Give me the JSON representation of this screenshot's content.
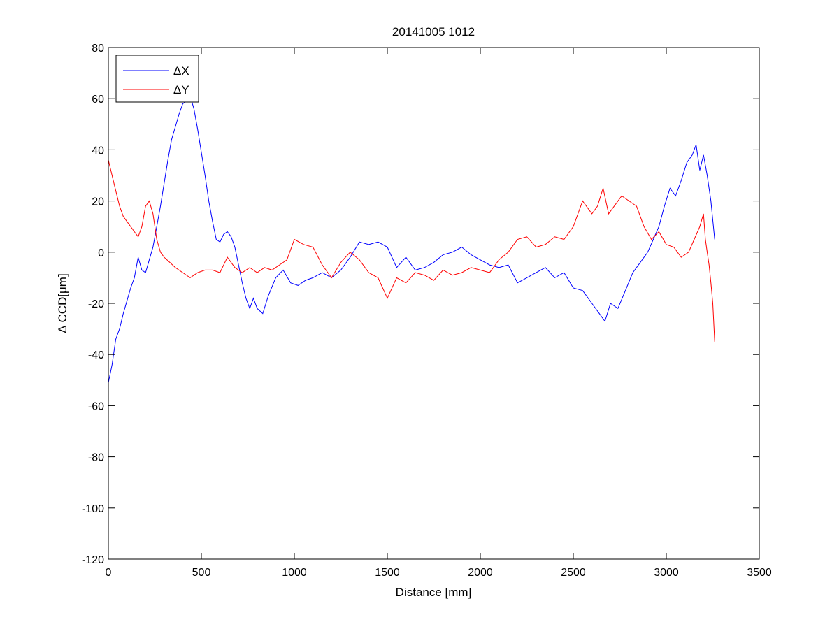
{
  "chart_data": {
    "type": "line",
    "title": "20141005 1012",
    "xlabel": "Distance [mm]",
    "ylabel": "Δ CCD[μm]",
    "xlim": [
      0,
      3500
    ],
    "ylim": [
      -120,
      80
    ],
    "xticks": [
      0,
      500,
      1000,
      1500,
      2000,
      2500,
      3000,
      3500
    ],
    "xtick_labels": [
      "0",
      "500",
      "1000",
      "1500",
      "2000",
      "2500",
      "3000",
      "3500"
    ],
    "yticks": [
      -120,
      -100,
      -80,
      -60,
      -40,
      -20,
      0,
      20,
      40,
      60,
      80
    ],
    "ytick_labels": [
      "-120",
      "-100",
      "-80",
      "-60",
      "-40",
      "-20",
      "0",
      "20",
      "40",
      "60",
      "80"
    ],
    "grid": false,
    "legend_position": "top-left",
    "series": [
      {
        "name": "ΔX",
        "color": "#0000ff",
        "x": [
          0,
          20,
          40,
          60,
          80,
          100,
          120,
          140,
          160,
          180,
          200,
          220,
          240,
          260,
          280,
          300,
          320,
          340,
          360,
          380,
          400,
          420,
          440,
          460,
          480,
          500,
          520,
          540,
          560,
          580,
          600,
          620,
          640,
          660,
          680,
          700,
          720,
          740,
          760,
          780,
          800,
          830,
          860,
          900,
          940,
          980,
          1020,
          1060,
          1100,
          1150,
          1200,
          1250,
          1300,
          1350,
          1400,
          1450,
          1500,
          1550,
          1600,
          1650,
          1700,
          1750,
          1800,
          1850,
          1900,
          1950,
          2000,
          2050,
          2100,
          2150,
          2200,
          2250,
          2300,
          2350,
          2400,
          2450,
          2500,
          2550,
          2600,
          2640,
          2670,
          2700,
          2740,
          2780,
          2820,
          2860,
          2900,
          2930,
          2960,
          2990,
          3020,
          3050,
          3080,
          3110,
          3140,
          3160,
          3180,
          3200,
          3220,
          3240,
          3260
        ],
        "y": [
          -51,
          -44,
          -34,
          -30,
          -24,
          -19,
          -14,
          -10,
          -2,
          -7,
          -8,
          -3,
          2,
          10,
          18,
          27,
          36,
          44,
          49,
          54,
          58,
          59,
          61,
          56,
          48,
          39,
          30,
          20,
          12,
          5,
          4,
          7,
          8,
          6,
          2,
          -5,
          -12,
          -18,
          -22,
          -18,
          -22,
          -24,
          -17,
          -10,
          -7,
          -12,
          -13,
          -11,
          -10,
          -8,
          -10,
          -7,
          -2,
          4,
          3,
          4,
          2,
          -6,
          -2,
          -7,
          -6,
          -4,
          -1,
          0,
          2,
          -1,
          -3,
          -5,
          -6,
          -5,
          -12,
          -10,
          -8,
          -6,
          -10,
          -8,
          -14,
          -15,
          -20,
          -24,
          -27,
          -20,
          -22,
          -15,
          -8,
          -4,
          0,
          5,
          10,
          18,
          25,
          22,
          28,
          35,
          38,
          42,
          32,
          38,
          30,
          20,
          5
        ]
      },
      {
        "name": "ΔY",
        "color": "#ff0000",
        "x": [
          0,
          20,
          40,
          60,
          80,
          100,
          120,
          140,
          160,
          180,
          200,
          220,
          240,
          260,
          280,
          300,
          330,
          360,
          400,
          440,
          480,
          520,
          560,
          600,
          640,
          680,
          720,
          760,
          800,
          840,
          880,
          920,
          960,
          1000,
          1050,
          1100,
          1150,
          1200,
          1250,
          1300,
          1350,
          1400,
          1450,
          1500,
          1550,
          1600,
          1650,
          1700,
          1750,
          1800,
          1850,
          1900,
          1950,
          2000,
          2050,
          2100,
          2150,
          2200,
          2250,
          2300,
          2350,
          2400,
          2450,
          2500,
          2550,
          2600,
          2630,
          2660,
          2690,
          2720,
          2760,
          2800,
          2840,
          2880,
          2920,
          2960,
          3000,
          3040,
          3080,
          3120,
          3150,
          3180,
          3200,
          3210,
          3220,
          3230,
          3240,
          3250,
          3260
        ],
        "y": [
          36,
          30,
          24,
          18,
          14,
          12,
          10,
          8,
          6,
          10,
          18,
          20,
          15,
          5,
          0,
          -2,
          -4,
          -6,
          -8,
          -10,
          -8,
          -7,
          -7,
          -8,
          -2,
          -6,
          -8,
          -6,
          -8,
          -6,
          -7,
          -5,
          -3,
          5,
          3,
          2,
          -5,
          -10,
          -4,
          0,
          -3,
          -8,
          -10,
          -18,
          -10,
          -12,
          -8,
          -9,
          -11,
          -7,
          -9,
          -8,
          -6,
          -7,
          -8,
          -3,
          0,
          5,
          6,
          2,
          3,
          6,
          5,
          10,
          20,
          15,
          18,
          25,
          15,
          18,
          22,
          20,
          18,
          10,
          5,
          8,
          3,
          2,
          -2,
          0,
          5,
          10,
          15,
          5,
          0,
          -5,
          -12,
          -20,
          -35
        ]
      }
    ]
  }
}
